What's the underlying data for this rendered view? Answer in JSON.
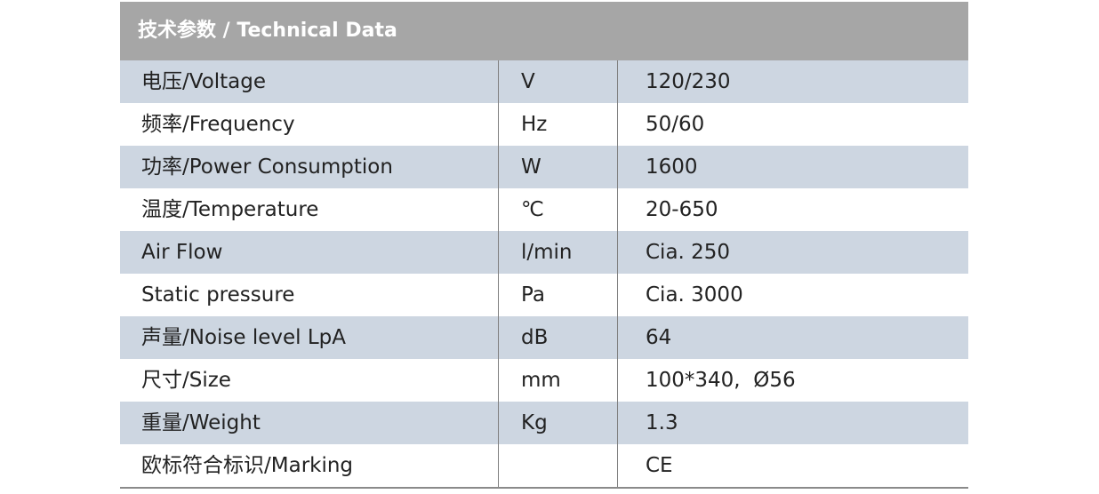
{
  "header": {
    "title": "技术参数 / Technical Data"
  },
  "table": {
    "rows": [
      {
        "parameter": "电压/Voltage",
        "unit": "V",
        "value": "120/230"
      },
      {
        "parameter": "频率/Frequency",
        "unit": "Hz",
        "value": "50/60"
      },
      {
        "parameter": "功率/Power Consumption",
        "unit": "W",
        "value": "1600"
      },
      {
        "parameter": "温度/Temperature",
        "unit": "℃",
        "value": "20-650"
      },
      {
        "parameter": "Air Flow",
        "unit": "l/min",
        "value": "Cia. 250"
      },
      {
        "parameter": "Static pressure",
        "unit": "Pa",
        "value": "Cia. 3000"
      },
      {
        "parameter": "声量/Noise level LpA",
        "unit": "dB",
        "value": "64"
      },
      {
        "parameter": "尺寸/Size",
        "unit": "mm",
        "value": "100*340,  Ø56"
      },
      {
        "parameter": "重量/Weight",
        "unit": "Kg",
        "value": "1.3"
      },
      {
        "parameter": "欧标符合标识/Marking",
        "value": "CE"
      }
    ]
  }
}
